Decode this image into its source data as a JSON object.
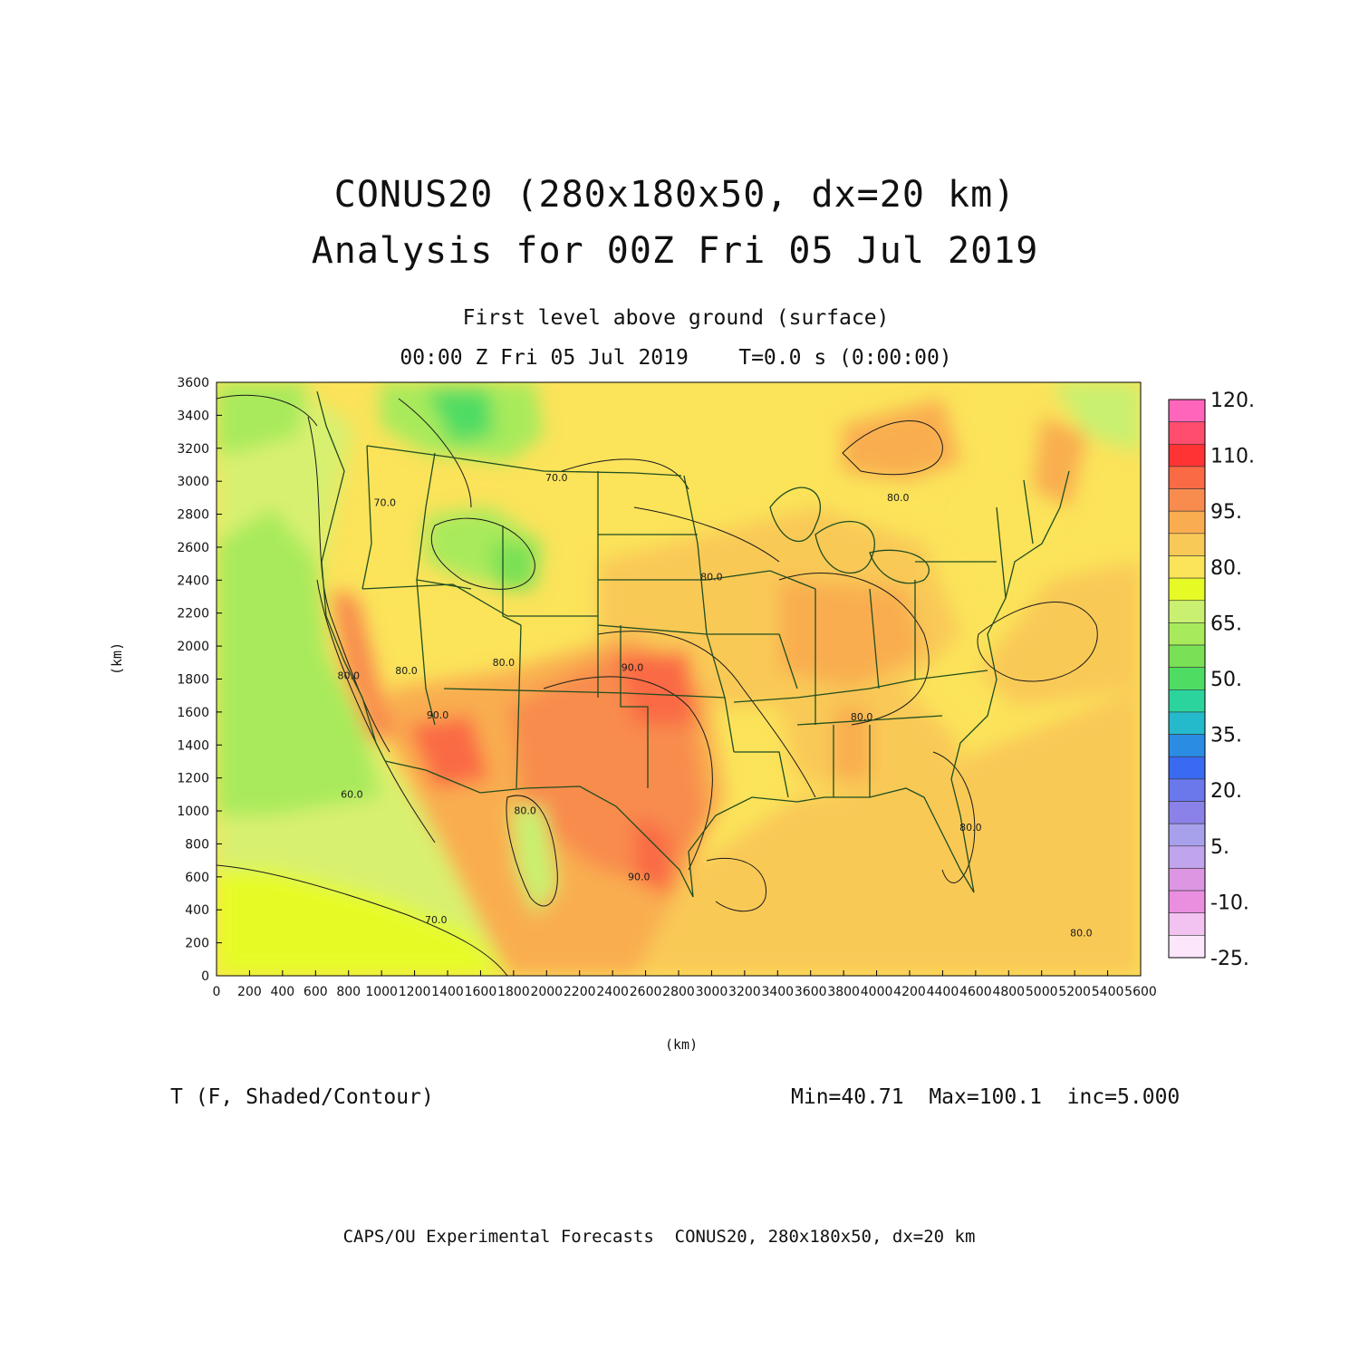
{
  "header": {
    "title_line1": "CONUS20 (280x180x50, dx=20 km)",
    "title_line2": "Analysis for 00Z Fri 05 Jul 2019",
    "subtitle_line1": "First level above ground (surface)",
    "subtitle_line2": "00:00 Z Fri 05 Jul 2019    T=0.0 s (0:00:00)"
  },
  "axes": {
    "x_label": "(km)",
    "y_label": "(km)",
    "x_ticks": [
      "0",
      "200",
      "400",
      "600",
      "800",
      "1000",
      "1200",
      "1400",
      "1600",
      "1800",
      "2000",
      "2200",
      "2400",
      "2600",
      "2800",
      "3000",
      "3200",
      "3400",
      "3600",
      "3800",
      "4000",
      "4200",
      "4400",
      "4600",
      "4800",
      "5000",
      "5200",
      "5400",
      "5600"
    ],
    "y_ticks": [
      "0",
      "200",
      "400",
      "600",
      "800",
      "1000",
      "1200",
      "1400",
      "1600",
      "1800",
      "2000",
      "2200",
      "2400",
      "2600",
      "2800",
      "3000",
      "3200",
      "3400",
      "3600"
    ],
    "x_range": [
      0,
      5600
    ],
    "y_range": [
      0,
      3600
    ]
  },
  "colorbar": {
    "labels": [
      "120.",
      "110.",
      "95.",
      "80.",
      "65.",
      "50.",
      "35.",
      "20.",
      "5.",
      "-10.",
      "-25."
    ],
    "colors": [
      "#ff66bb",
      "#ff4d6d",
      "#ff3333",
      "#fa6a45",
      "#f88c4e",
      "#f9ad50",
      "#f9c957",
      "#fbe35a",
      "#e6fb26",
      "#c9f070",
      "#a7ea5c",
      "#7ae055",
      "#4fdc63",
      "#2bd49d",
      "#25b9cc",
      "#2a8ce2",
      "#3a6af2",
      "#6b78ec",
      "#8a82e8",
      "#a7a1ec",
      "#c0a4ec",
      "#dc96e2",
      "#ea8ee0",
      "#f2c3f0",
      "#fce6fb"
    ]
  },
  "field": {
    "name": "T (F, Shaded/Contour)",
    "stats": "Min=40.71  Max=100.1  inc=5.000",
    "contour_labels": [
      {
        "text": "70.0",
        "x": 2060,
        "y": 3000
      },
      {
        "text": "80.0",
        "x": 3000,
        "y": 2400
      },
      {
        "text": "90.0",
        "x": 2520,
        "y": 1850
      },
      {
        "text": "80.0",
        "x": 1150,
        "y": 1830
      },
      {
        "text": "80.0",
        "x": 1740,
        "y": 1880
      },
      {
        "text": "90.0",
        "x": 1340,
        "y": 1560
      },
      {
        "text": "60.0",
        "x": 820,
        "y": 1080
      },
      {
        "text": "80.0",
        "x": 1870,
        "y": 980
      },
      {
        "text": "90.0",
        "x": 2560,
        "y": 580
      },
      {
        "text": "70.0",
        "x": 1330,
        "y": 320
      },
      {
        "text": "80.0",
        "x": 3910,
        "y": 1550
      },
      {
        "text": "80.0",
        "x": 4570,
        "y": 880
      },
      {
        "text": "80.0",
        "x": 5240,
        "y": 240
      },
      {
        "text": "80.0",
        "x": 4130,
        "y": 2880
      },
      {
        "text": "70.0",
        "x": 1020,
        "y": 2850
      },
      {
        "text": "80.0",
        "x": 800,
        "y": 1800
      }
    ]
  },
  "footer": {
    "credit": "CAPS/OU Experimental Forecasts  CONUS20, 280x180x50, dx=20 km"
  }
}
